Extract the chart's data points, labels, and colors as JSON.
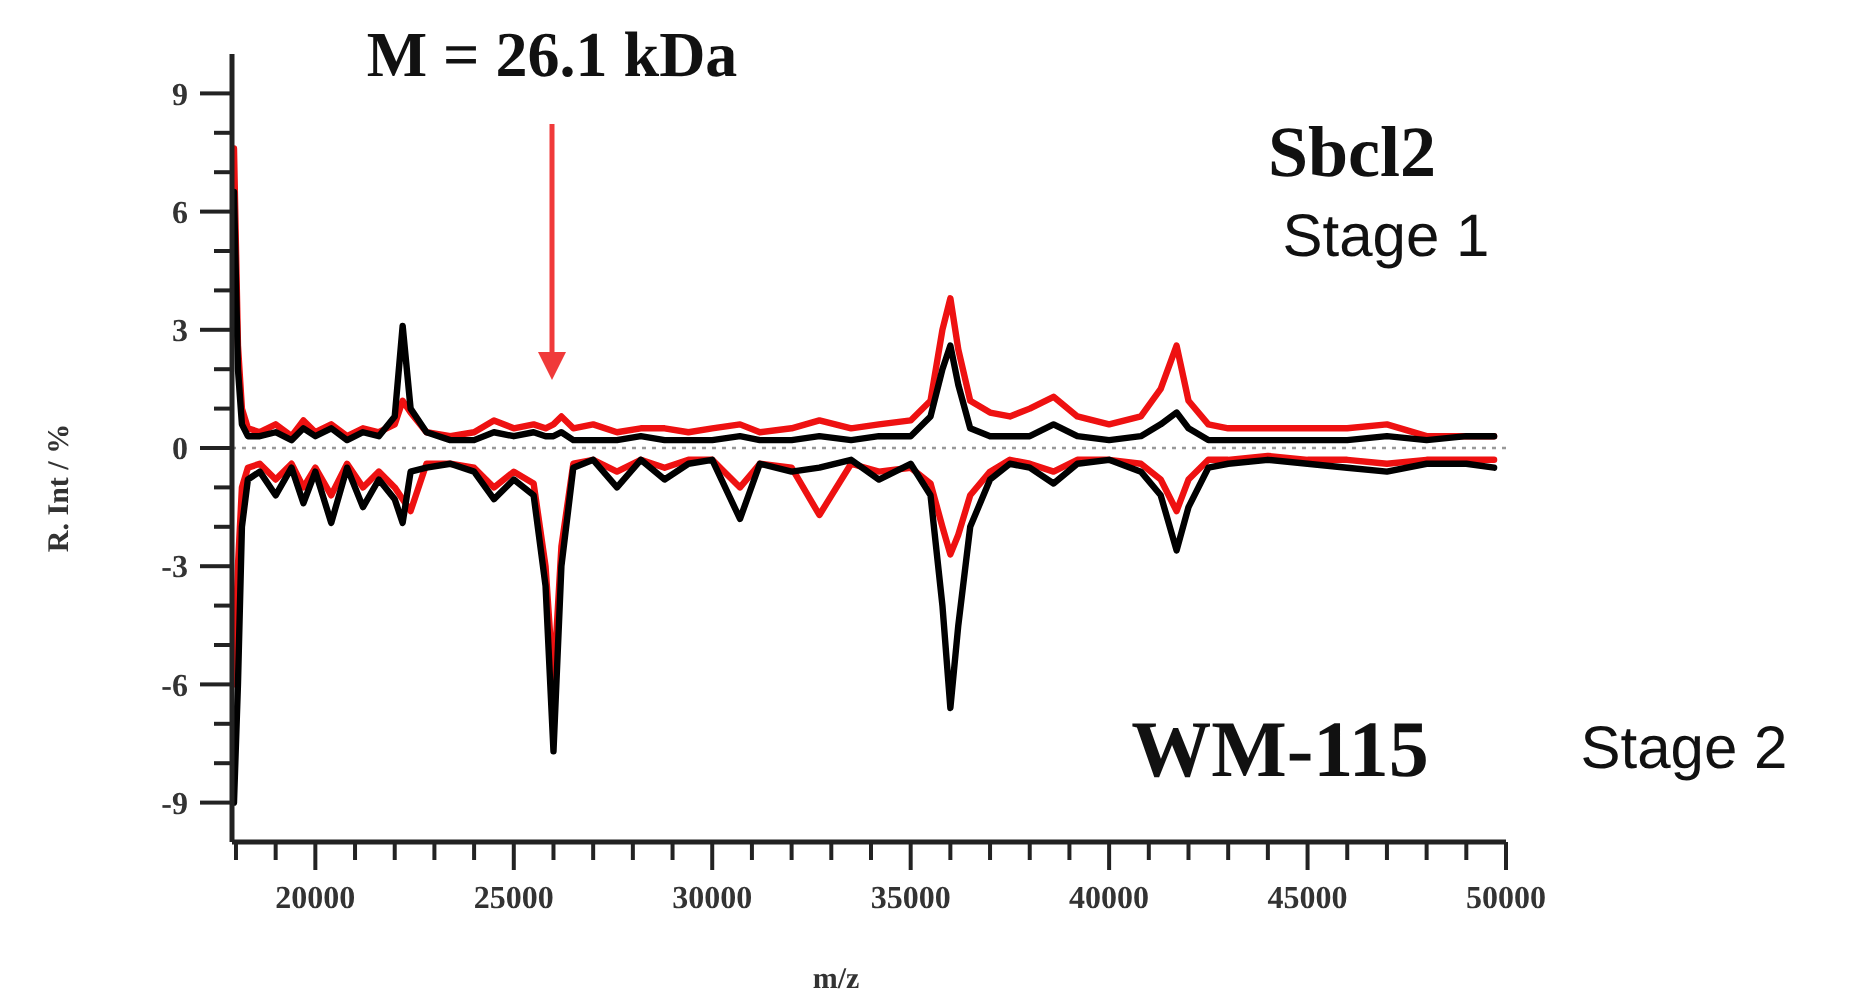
{
  "chart_data": {
    "type": "line",
    "xlabel": "m/z",
    "ylabel": "R. Int / %",
    "annotations": [
      "M = 26.1 kDa",
      "Sbcl2",
      "Stage 1",
      "WM-115",
      "Stage 2"
    ],
    "x": [
      17950,
      18050,
      18150,
      18300,
      18600,
      19000,
      19400,
      19700,
      20000,
      20400,
      20800,
      21200,
      21600,
      22000,
      22200,
      22400,
      22800,
      23400,
      24000,
      24500,
      25000,
      25500,
      25800,
      26000,
      26200,
      26500,
      27000,
      27600,
      28200,
      28800,
      29400,
      30000,
      30700,
      31200,
      32000,
      32700,
      33500,
      34200,
      35000,
      35500,
      35800,
      36000,
      36200,
      36500,
      37000,
      37500,
      38000,
      38600,
      39200,
      40000,
      40800,
      41300,
      41700,
      42000,
      42500,
      43000,
      44000,
      45000,
      46000,
      47000,
      48000,
      49000,
      49700
    ],
    "series": [
      {
        "color": "#ee1111",
        "values": [
          7.6,
          2.6,
          1.0,
          0.5,
          0.4,
          0.6,
          0.3,
          0.7,
          0.4,
          0.6,
          0.3,
          0.5,
          0.4,
          0.6,
          1.2,
          0.9,
          0.4,
          0.3,
          0.4,
          0.7,
          0.5,
          0.6,
          0.5,
          0.6,
          0.8,
          0.5,
          0.6,
          0.4,
          0.5,
          0.5,
          0.4,
          0.5,
          0.6,
          0.4,
          0.5,
          0.7,
          0.5,
          0.6,
          0.7,
          1.2,
          3.0,
          3.8,
          2.5,
          1.2,
          0.9,
          0.8,
          1.0,
          1.3,
          0.8,
          0.6,
          0.8,
          1.5,
          2.6,
          1.2,
          0.6,
          0.5,
          0.5,
          0.5,
          0.5,
          0.6,
          0.3,
          0.3,
          0.3
        ]
      },
      {
        "color": "#ee1111",
        "values": [
          -6,
          -3,
          -1,
          -0.5,
          -0.4,
          -0.8,
          -0.4,
          -1.0,
          -0.5,
          -1.2,
          -0.4,
          -1.0,
          -0.6,
          -1.0,
          -1.3,
          -1.6,
          -0.4,
          -0.4,
          -0.5,
          -1.0,
          -0.6,
          -0.9,
          -3,
          -6.0,
          -2.5,
          -0.4,
          -0.3,
          -0.6,
          -0.3,
          -0.5,
          -0.3,
          -0.3,
          -1.0,
          -0.4,
          -0.5,
          -1.7,
          -0.4,
          -0.6,
          -0.5,
          -0.9,
          -2.0,
          -2.7,
          -2.2,
          -1.2,
          -0.6,
          -0.3,
          -0.4,
          -0.6,
          -0.3,
          -0.3,
          -0.4,
          -0.8,
          -1.6,
          -0.8,
          -0.3,
          -0.3,
          -0.2,
          -0.3,
          -0.3,
          -0.4,
          -0.3,
          -0.3,
          -0.3
        ]
      },
      {
        "color": "#000000",
        "values": [
          6.5,
          2.0,
          0.6,
          0.3,
          0.3,
          0.4,
          0.2,
          0.5,
          0.3,
          0.5,
          0.2,
          0.4,
          0.3,
          0.8,
          3.1,
          1.0,
          0.4,
          0.2,
          0.2,
          0.4,
          0.3,
          0.4,
          0.3,
          0.3,
          0.4,
          0.2,
          0.2,
          0.2,
          0.3,
          0.2,
          0.2,
          0.2,
          0.3,
          0.2,
          0.2,
          0.3,
          0.2,
          0.3,
          0.3,
          0.8,
          2.0,
          2.6,
          1.6,
          0.5,
          0.3,
          0.3,
          0.3,
          0.6,
          0.3,
          0.2,
          0.3,
          0.6,
          0.9,
          0.5,
          0.2,
          0.2,
          0.2,
          0.2,
          0.2,
          0.3,
          0.2,
          0.3,
          0.3
        ]
      },
      {
        "color": "#000000",
        "values": [
          -9,
          -6,
          -2,
          -0.8,
          -0.6,
          -1.2,
          -0.5,
          -1.4,
          -0.6,
          -1.9,
          -0.5,
          -1.5,
          -0.8,
          -1.3,
          -1.9,
          -0.6,
          -0.5,
          -0.4,
          -0.6,
          -1.3,
          -0.8,
          -1.2,
          -3.5,
          -7.7,
          -3,
          -0.5,
          -0.3,
          -1.0,
          -0.3,
          -0.8,
          -0.4,
          -0.3,
          -1.8,
          -0.4,
          -0.6,
          -0.5,
          -0.3,
          -0.8,
          -0.4,
          -1.2,
          -4.0,
          -6.6,
          -4.5,
          -2.0,
          -0.8,
          -0.4,
          -0.5,
          -0.9,
          -0.4,
          -0.3,
          -0.6,
          -1.2,
          -2.6,
          -1.5,
          -0.5,
          -0.4,
          -0.3,
          -0.4,
          -0.5,
          -0.6,
          -0.4,
          -0.4,
          -0.5
        ]
      }
    ],
    "xlim": [
      17900,
      50000
    ],
    "xticks": [
      {
        "value": 18000,
        "label": null
      },
      {
        "value": 19000,
        "label": null
      },
      20000,
      {
        "value": 21000,
        "label": null
      },
      {
        "value": 22000,
        "label": null
      },
      {
        "value": 23000,
        "label": null
      },
      {
        "value": 24000,
        "label": null
      },
      25000,
      {
        "value": 26000,
        "label": null
      },
      {
        "value": 27000,
        "label": null
      },
      {
        "value": 28000,
        "label": null
      },
      {
        "value": 29000,
        "label": null
      },
      30000,
      {
        "value": 31000,
        "label": null
      },
      {
        "value": 32000,
        "label": null
      },
      {
        "value": 33000,
        "label": null
      },
      {
        "value": 34000,
        "label": null
      },
      35000,
      {
        "value": 36000,
        "label": null
      },
      {
        "value": 37000,
        "label": null
      },
      {
        "value": 38000,
        "label": null
      },
      {
        "value": 39000,
        "label": null
      },
      40000,
      {
        "value": 41000,
        "label": null
      },
      {
        "value": 42000,
        "label": null
      },
      {
        "value": 43000,
        "label": null
      },
      {
        "value": 44000,
        "label": null
      },
      45000,
      {
        "value": 46000,
        "label": null
      },
      {
        "value": 47000,
        "label": null
      },
      {
        "value": 48000,
        "label": null
      },
      {
        "value": 49000,
        "label": null
      },
      50000
    ],
    "ylim": [
      -10,
      10
    ],
    "yticks": [
      -9,
      {
        "value": -8,
        "label": null
      },
      {
        "value": -7,
        "label": null
      },
      -6,
      {
        "value": -5,
        "label": null
      },
      {
        "value": -4,
        "label": null
      },
      -3,
      {
        "value": -2,
        "label": null
      },
      {
        "value": -1,
        "label": null
      },
      0,
      {
        "value": 1,
        "label": null
      },
      {
        "value": 2,
        "label": null
      },
      3,
      {
        "value": 4,
        "label": null
      },
      {
        "value": 5,
        "label": null
      },
      6,
      {
        "value": 7,
        "label": null
      },
      {
        "value": 8,
        "label": null
      },
      9
    ],
    "ref_lines": [
      {
        "axis": "y",
        "value": 0,
        "color": "#999999",
        "line_style": "dotted"
      }
    ],
    "grid": false,
    "marker": "none",
    "line_style": "solid"
  }
}
